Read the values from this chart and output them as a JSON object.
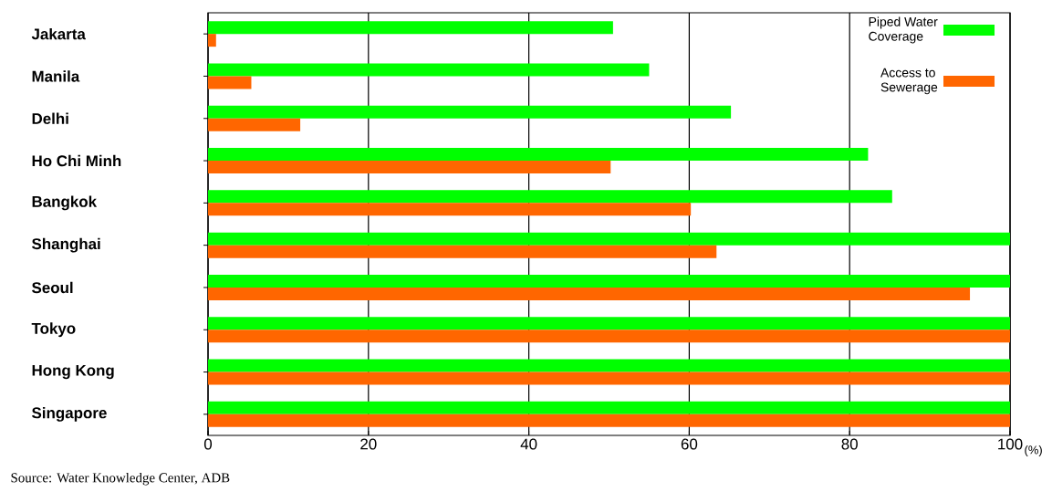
{
  "chart_data": {
    "type": "bar",
    "orientation": "horizontal",
    "categories": [
      "Jakarta",
      "Manila",
      "Delhi",
      "Ho Chi Minh",
      "Bangkok",
      "Shanghai",
      "Seoul",
      "Tokyo",
      "Hong Kong",
      "Singapore"
    ],
    "series": [
      {
        "name": "Piped Water Coverage",
        "color": "#00ff00",
        "values": [
          50.5,
          55,
          65.2,
          82.3,
          85.3,
          100,
          100,
          100,
          100,
          100
        ]
      },
      {
        "name": "Access to Sewerage",
        "color": "#ff6600",
        "values": [
          1,
          5.4,
          11.5,
          50.2,
          60.2,
          63.4,
          95,
          100,
          100,
          100
        ]
      }
    ],
    "xlabel": "(%)",
    "xlim": [
      0,
      100
    ],
    "xticks": [
      0,
      20,
      40,
      60,
      80,
      100
    ],
    "grid": "x",
    "legend": "top right",
    "annotations": [
      "Source: Water Knowledge Center, ADB"
    ]
  }
}
